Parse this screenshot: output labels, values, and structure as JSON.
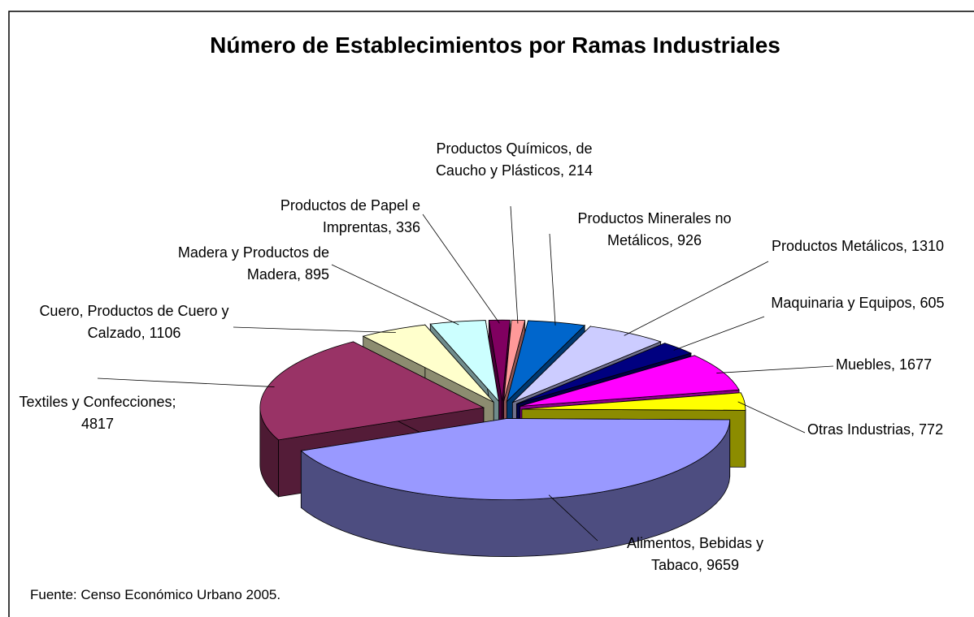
{
  "chart_data": {
    "type": "pie",
    "title": "Número de Establecimientos por Ramas Industriales",
    "source": "Fuente: Censo Económico Urbano 2005.",
    "values": [
      214,
      926,
      1310,
      605,
      1677,
      772,
      9659,
      4817,
      1106,
      895,
      336
    ],
    "value_labels": [
      "Productos Químicos, de Caucho y Plásticos, 214",
      "Productos Minerales no Metálicos, 926",
      "Productos Metálicos, 1310",
      "Maquinaria y Equipos, 605",
      "Muebles, 1677",
      "Otras Industrias, 772",
      "Alimentos, Bebidas y Tabaco, 9659",
      "Textiles y Confecciones; 4817",
      "Cuero, Productos de Cuero y Calzado, 1106",
      "Madera y Productos de Madera, 895",
      "Productos de Papel e Imprentas, 336"
    ],
    "colors": [
      "#ff9999",
      "#0066cc",
      "#ccccff",
      "#000080",
      "#ff00ff",
      "#ffff00",
      "#9999ff",
      "#993366",
      "#ffffcc",
      "#ccffff",
      "#800060"
    ]
  }
}
